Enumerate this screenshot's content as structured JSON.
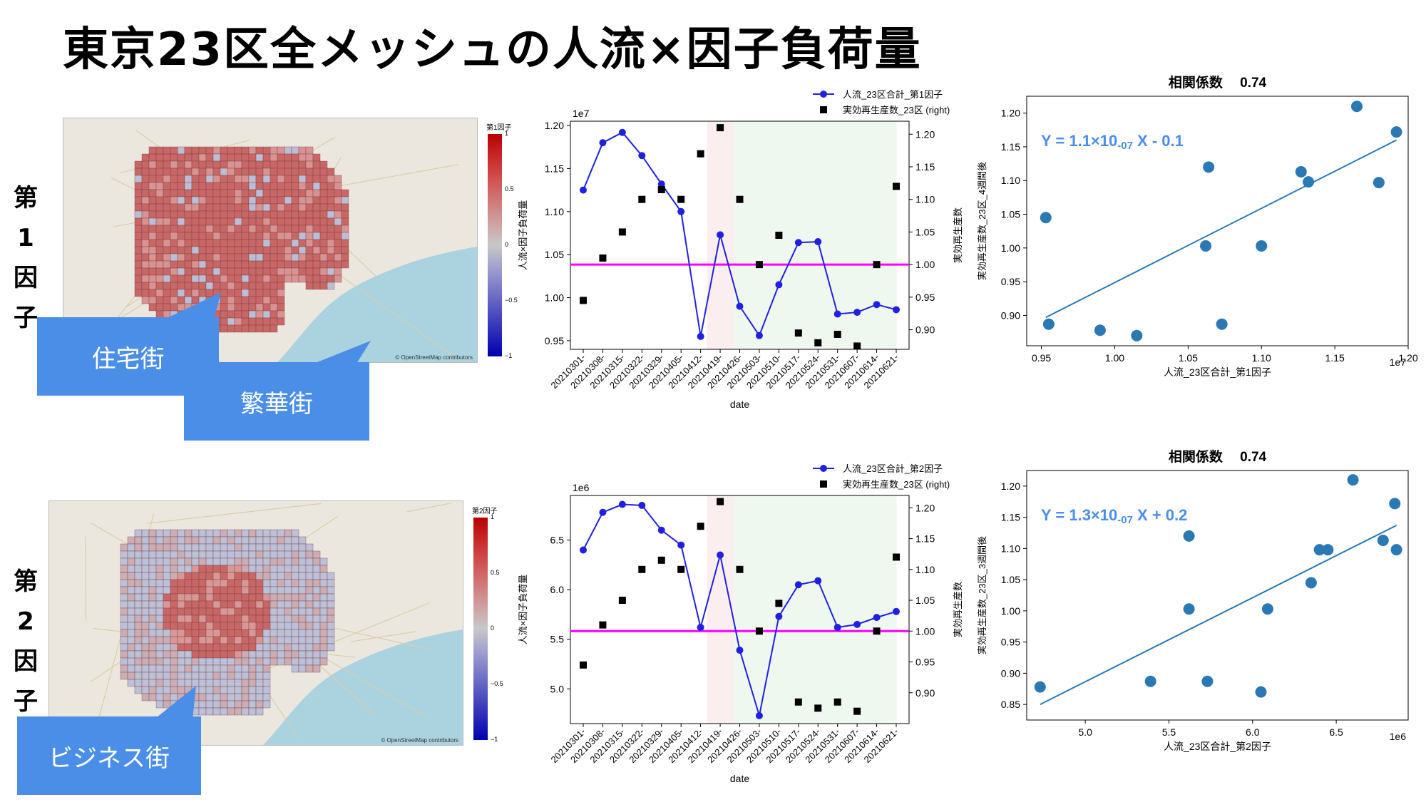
{
  "title": "東京23区全メッシュの人流×因子負荷量",
  "factors": [
    {
      "label_chars": [
        "第",
        "1",
        "因",
        "子"
      ],
      "map": {
        "colorbar_title": "第1因子",
        "colorbar_ticks": [
          "1",
          "0.5",
          "0",
          "−0.5",
          "−1"
        ],
        "credit": "© OpenStreetMap contributors",
        "callouts": [
          "住宅街",
          "繁華街"
        ]
      },
      "ts_chart": {
        "type": "line",
        "offset_label": "1e7",
        "ylabel": "人流×因子負荷量",
        "ylabel_right": "実効再生産数",
        "xlabel": "date",
        "legend": [
          "人流_23区合計_第1因子",
          "実効再生産数_23区 (right)"
        ],
        "x_tick_labels": [
          "20210301-",
          "20210308-",
          "20210315-",
          "20210322-",
          "20210329-",
          "20210405-",
          "20210412-",
          "20210419-",
          "20210426-",
          "20210503-",
          "20210510-",
          "20210517-",
          "20210524-",
          "20210531-",
          "20210607-",
          "20210614-",
          "20210621-"
        ],
        "y_ticks": [
          "0.95",
          "1.00",
          "1.05",
          "1.10",
          "1.15",
          "1.20"
        ],
        "y_ticks_right": [
          "0.90",
          "0.95",
          "1.00",
          "1.05",
          "1.10",
          "1.15",
          "1.20"
        ]
      },
      "scatter": {
        "corr_label": "相関係数",
        "corr_value": "0.74",
        "equation": "Y = 1.1×10",
        "equation_exp": "-07",
        "equation_tail": " X - 0.1",
        "xlabel": "人流_23区合計_第1因子",
        "ylabel": "実効再生産数_23区_4週間後",
        "offset_label": "1e7",
        "x_ticks": [
          "0.95",
          "1.00",
          "1.05",
          "1.10",
          "1.15",
          "1.20"
        ],
        "y_ticks": [
          "0.90",
          "0.95",
          "1.00",
          "1.05",
          "1.10",
          "1.15",
          "1.20"
        ]
      }
    },
    {
      "label_chars": [
        "第",
        "2",
        "因",
        "子"
      ],
      "map": {
        "colorbar_title": "第2因子",
        "colorbar_ticks": [
          "1",
          "0.5",
          "0",
          "−0.5",
          "−1"
        ],
        "credit": "© OpenStreetMap contributors",
        "callouts": [
          "ビジネス街"
        ]
      },
      "ts_chart": {
        "type": "line",
        "offset_label": "1e6",
        "ylabel": "人流×因子負荷量",
        "ylabel_right": "実効再生産数",
        "xlabel": "date",
        "legend": [
          "人流_23区合計_第2因子",
          "実効再生産数_23区 (right)"
        ],
        "x_tick_labels": [
          "20210301-",
          "20210308-",
          "20210315-",
          "20210322-",
          "20210329-",
          "20210405-",
          "20210412-",
          "20210419-",
          "20210426-",
          "20210503-",
          "20210510-",
          "20210517-",
          "20210524-",
          "20210531-",
          "20210607-",
          "20210614-",
          "20210621-"
        ],
        "y_ticks": [
          "5.0",
          "5.5",
          "6.0",
          "6.5"
        ],
        "y_ticks_right": [
          "0.90",
          "0.95",
          "1.00",
          "1.05",
          "1.10",
          "1.15",
          "1.20"
        ]
      },
      "scatter": {
        "corr_label": "相関係数",
        "corr_value": "0.74",
        "equation": "Y = 1.3×10",
        "equation_exp": "-07",
        "equation_tail": " X + 0.2",
        "xlabel": "人流_23区合計_第2因子",
        "ylabel": "実効再生産数_23区_3週間後",
        "offset_label": "1e6",
        "x_ticks": [
          "5.0",
          "5.5",
          "6.0",
          "6.5"
        ],
        "y_ticks": [
          "0.85",
          "0.90",
          "0.95",
          "1.00",
          "1.05",
          "1.10",
          "1.15",
          "1.20"
        ]
      }
    }
  ],
  "colors": {
    "line": "#2020e0",
    "hline": "#ff00ff",
    "pink_band": "#fbeeee",
    "green_band": "#eef8ee",
    "scatter": "#2a78b4",
    "callout": "#4a8ee8",
    "equation": "#4a8ee8"
  },
  "chart_data": [
    {
      "type": "line",
      "name": "factor1_timeseries",
      "x": [
        "20210301-",
        "20210308-",
        "20210315-",
        "20210322-",
        "20210329-",
        "20210405-",
        "20210412-",
        "20210419-",
        "20210426-",
        "20210503-",
        "20210510-",
        "20210517-",
        "20210524-",
        "20210531-",
        "20210607-",
        "20210614-",
        "20210621-"
      ],
      "series": [
        {
          "name": "人流_23区合計_第1因子",
          "axis": "left",
          "values": [
            1.125,
            1.18,
            1.192,
            1.165,
            1.132,
            1.1,
            0.955,
            1.073,
            0.99,
            0.956,
            1.015,
            1.064,
            1.065,
            0.981,
            0.983,
            0.992,
            0.986
          ]
        },
        {
          "name": "実効再生産数_23区 (right)",
          "axis": "right",
          "marker": "square",
          "values": [
            0.945,
            1.01,
            1.05,
            1.1,
            1.115,
            1.1,
            1.17,
            1.21,
            1.1,
            1.0,
            1.045,
            0.895,
            0.88,
            0.893,
            0.875,
            1.0,
            1.12
          ]
        }
      ],
      "ylim": [
        0.94,
        1.205
      ],
      "ylim_right": [
        0.87,
        1.22
      ],
      "hline_right": 1.0,
      "shaded": [
        {
          "from": "20210412-",
          "to": "20210419-",
          "color": "pink"
        },
        {
          "from": "20210419-",
          "to": "20210614-",
          "color": "green"
        }
      ]
    },
    {
      "type": "scatter",
      "name": "factor1_scatter",
      "points": [
        [
          0.953,
          1.045
        ],
        [
          0.955,
          0.887
        ],
        [
          0.99,
          0.878
        ],
        [
          1.015,
          0.87
        ],
        [
          1.062,
          1.003
        ],
        [
          1.064,
          1.12
        ],
        [
          1.073,
          0.887
        ],
        [
          1.1,
          1.003
        ],
        [
          1.127,
          1.113
        ],
        [
          1.132,
          1.098
        ],
        [
          1.165,
          1.21
        ],
        [
          1.18,
          1.097
        ],
        [
          1.192,
          1.172
        ]
      ],
      "trendline": [
        [
          0.953,
          0.897
        ],
        [
          1.192,
          1.16
        ]
      ],
      "xlim": [
        0.94,
        1.2
      ],
      "ylim": [
        0.855,
        1.225
      ]
    },
    {
      "type": "line",
      "name": "factor2_timeseries",
      "x": [
        "20210301-",
        "20210308-",
        "20210315-",
        "20210322-",
        "20210329-",
        "20210405-",
        "20210412-",
        "20210419-",
        "20210426-",
        "20210503-",
        "20210510-",
        "20210517-",
        "20210524-",
        "20210531-",
        "20210607-",
        "20210614-",
        "20210621-"
      ],
      "series": [
        {
          "name": "人流_23区合計_第2因子",
          "axis": "left",
          "values": [
            6.4,
            6.78,
            6.86,
            6.85,
            6.6,
            6.45,
            5.62,
            6.35,
            5.39,
            4.73,
            5.73,
            6.05,
            6.09,
            5.62,
            5.65,
            5.72,
            5.78
          ]
        },
        {
          "name": "実効再生産数_23区 (right)",
          "axis": "right",
          "marker": "square",
          "values": [
            0.945,
            1.01,
            1.05,
            1.1,
            1.115,
            1.1,
            1.17,
            1.21,
            1.1,
            1.0,
            1.045,
            0.885,
            0.875,
            0.885,
            0.87,
            1.0,
            1.12
          ]
        }
      ],
      "ylim": [
        4.65,
        6.95
      ],
      "ylim_right": [
        0.85,
        1.22
      ],
      "hline_right": 1.0,
      "shaded": [
        {
          "from": "20210412-",
          "to": "20210419-",
          "color": "pink"
        },
        {
          "from": "20210419-",
          "to": "20210614-",
          "color": "green"
        }
      ]
    },
    {
      "type": "scatter",
      "name": "factor2_scatter",
      "points": [
        [
          4.73,
          0.878
        ],
        [
          5.39,
          0.887
        ],
        [
          5.62,
          1.003
        ],
        [
          5.62,
          1.12
        ],
        [
          5.73,
          0.887
        ],
        [
          6.05,
          0.87
        ],
        [
          6.09,
          1.003
        ],
        [
          6.35,
          1.045
        ],
        [
          6.4,
          1.098
        ],
        [
          6.45,
          1.098
        ],
        [
          6.6,
          1.21
        ],
        [
          6.78,
          1.113
        ],
        [
          6.85,
          1.172
        ],
        [
          6.86,
          1.098
        ]
      ],
      "trendline": [
        [
          4.73,
          0.85
        ],
        [
          6.86,
          1.137
        ]
      ],
      "xlim": [
        4.65,
        6.93
      ],
      "ylim": [
        0.825,
        1.225
      ]
    }
  ]
}
